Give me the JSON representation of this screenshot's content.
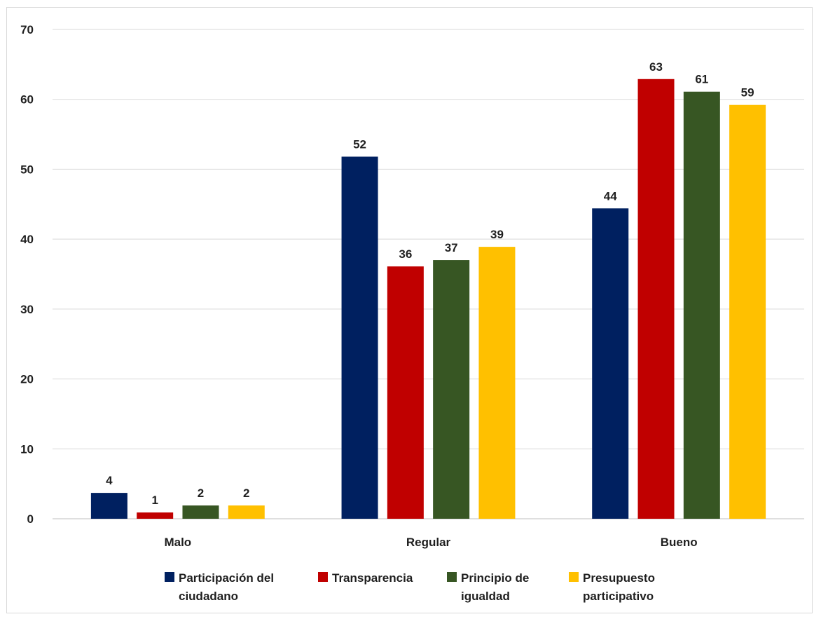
{
  "chart_data": {
    "type": "bar",
    "categories": [
      "Malo",
      "Regular",
      "Bueno"
    ],
    "series": [
      {
        "name": "Participación del ciudadano",
        "color": "#002060",
        "values": [
          4,
          52,
          44
        ],
        "bar_values": [
          3.7,
          51.8,
          44.4
        ]
      },
      {
        "name": "Transparencia",
        "color": "#C00000",
        "values": [
          1,
          36,
          63
        ],
        "bar_values": [
          0.9,
          36.1,
          62.9
        ]
      },
      {
        "name": "Principio de igualdad",
        "color": "#375623",
        "values": [
          2,
          37,
          61
        ],
        "bar_values": [
          1.9,
          37.0,
          61.1
        ]
      },
      {
        "name": "Presupuesto participativo",
        "color": "#FFC000",
        "values": [
          2,
          39,
          59
        ],
        "bar_values": [
          1.9,
          38.9,
          59.2
        ]
      }
    ],
    "ylim": [
      0,
      70
    ],
    "yticks": [
      0,
      10,
      20,
      30,
      40,
      50,
      60,
      70
    ],
    "grid": true,
    "legend_position": "bottom"
  },
  "legend": {
    "items": [
      {
        "label": "Participación del\nciudadano",
        "color": "#002060"
      },
      {
        "label": "Transparencia",
        "color": "#C00000"
      },
      {
        "label": "Principio de\nigualdad",
        "color": "#375623"
      },
      {
        "label": "Presupuesto\nparticipativo",
        "color": "#FFC000"
      }
    ]
  }
}
